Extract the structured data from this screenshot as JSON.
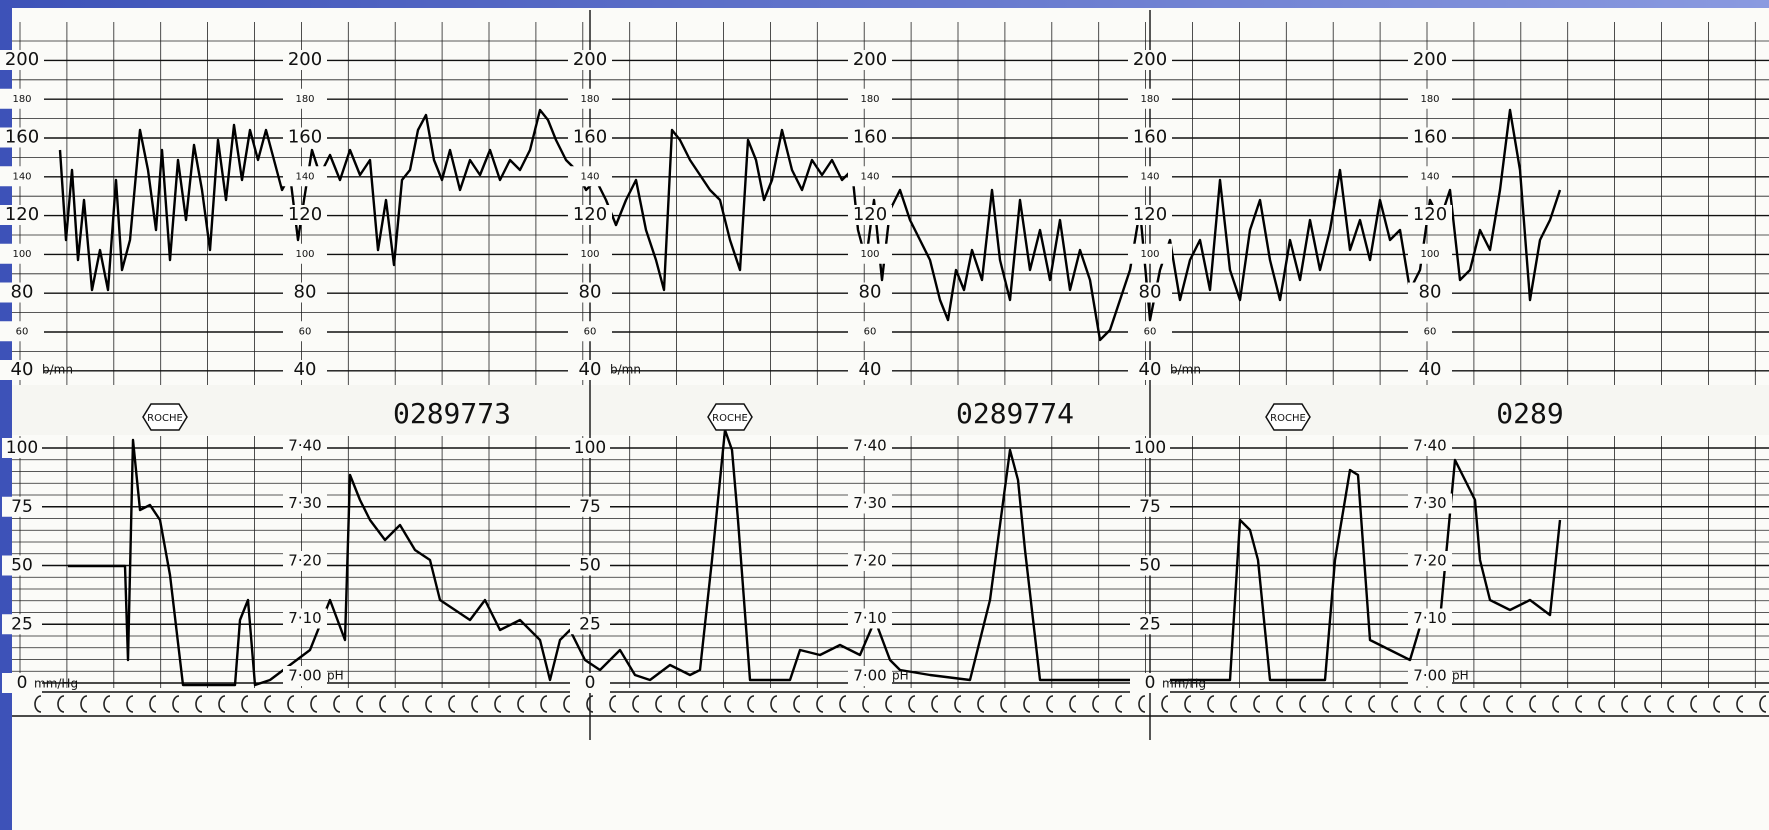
{
  "strip": {
    "heart_rate_scales": [
      {
        "labels": [
          "200",
          "180",
          "160",
          "140",
          "120",
          "100",
          "80",
          "60",
          "40"
        ],
        "unit": "b/mn"
      },
      {
        "labels": [
          "200",
          "180",
          "160",
          "140",
          "120",
          "100",
          "80",
          "60",
          "40"
        ]
      },
      {
        "labels": [
          "200",
          "180",
          "160",
          "140",
          "120",
          "100",
          "80",
          "60",
          "40"
        ],
        "unit": "b/mn"
      },
      {
        "labels": [
          "200",
          "180",
          "160",
          "140",
          "120",
          "100",
          "80",
          "60",
          "40"
        ]
      },
      {
        "labels": [
          "200",
          "180",
          "160",
          "140",
          "120",
          "100",
          "80",
          "60",
          "40"
        ],
        "unit": "b/mn"
      },
      {
        "labels": [
          "200",
          "180",
          "160",
          "140",
          "120",
          "100",
          "80",
          "60",
          "40"
        ]
      }
    ],
    "pressure_scales": [
      {
        "labels": [
          "100",
          "75",
          "50",
          "25",
          "0"
        ],
        "unit": "mm/Hg"
      },
      {
        "labels": [
          "100",
          "75",
          "50",
          "25",
          "0"
        ]
      },
      {
        "labels": [
          "100",
          "75",
          "50",
          "25",
          "0"
        ],
        "unit": "mm/Hg"
      }
    ],
    "ph_scales": [
      {
        "labels": [
          "7·40",
          "7·30",
          "7·20",
          "7·10",
          "7·00"
        ],
        "unit": "pH"
      },
      {
        "labels": [
          "7·40",
          "7·30",
          "7·20",
          "7·10",
          "7·00"
        ],
        "unit": "pH"
      },
      {
        "labels": [
          "7·40",
          "7·30",
          "7·20",
          "7·10",
          "7·00"
        ],
        "unit": "pH"
      }
    ],
    "markers": [
      {
        "logo": "ROCHE",
        "number": "0289773"
      },
      {
        "logo": "ROCHE",
        "number": "0289774"
      },
      {
        "logo": "ROCHE",
        "number": "0289"
      }
    ]
  }
}
